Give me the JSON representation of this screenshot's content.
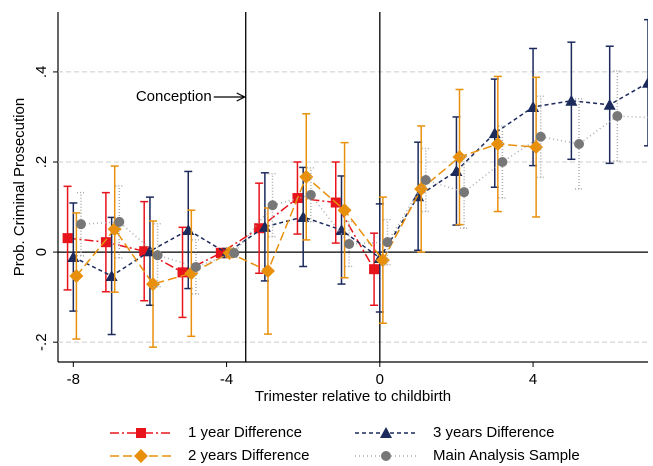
{
  "chart_data": {
    "type": "line",
    "x_label": "Trimester relative to childbirth",
    "y_label": "Prob. Criminal Prosecution",
    "annotation": "Conception",
    "xlim": [
      -8.4,
      7.0
    ],
    "ylim": [
      -0.244,
      0.533
    ],
    "xticks": [
      -8,
      -4,
      0,
      4
    ],
    "yticks": [
      {
        "value": -0.2,
        "label": "-.2"
      },
      0,
      {
        "value": 0.2,
        "label": ".2"
      },
      {
        "value": 0.4,
        "label": ".4"
      }
    ],
    "reference_lines": {
      "x": [
        -3.5,
        0
      ],
      "y": [
        0
      ]
    },
    "grid": true,
    "series": [
      {
        "name": "1 year Difference",
        "color": "#e8141c",
        "marker": "square",
        "dash": "9 3 2 3",
        "x": [
          -8.15,
          -7.15,
          -6.15,
          -5.15,
          -4.15,
          -3.15,
          -2.15,
          -1.15,
          -0.15
        ],
        "values": [
          0.031,
          0.022,
          0.002,
          -0.045,
          -0.002,
          0.053,
          0.12,
          0.11,
          -0.038
        ],
        "errors": [
          0.115,
          0.11,
          0.11,
          0.1,
          0.01,
          0.1,
          0.08,
          0.09,
          0.08
        ]
      },
      {
        "name": "3 years Difference",
        "color": "#1c2a5c",
        "marker": "triangle",
        "dash": "4 3",
        "x": [
          -8,
          -7,
          -6,
          -5,
          -4,
          -3,
          -2,
          -1,
          0,
          1,
          2,
          3,
          4,
          5,
          6,
          7
        ],
        "values": [
          -0.011,
          -0.053,
          0.002,
          0.049,
          -0.002,
          0.056,
          0.078,
          0.049,
          -0.013,
          0.124,
          0.18,
          0.264,
          0.322,
          0.336,
          0.327,
          0.376
        ],
        "errors": [
          0.12,
          0.13,
          0.12,
          0.13,
          0.01,
          0.12,
          0.11,
          0.12,
          0.12,
          0.12,
          0.12,
          0.12,
          0.13,
          0.13,
          0.13,
          0.14
        ]
      },
      {
        "name": "2 years Difference",
        "color": "#e8900c",
        "marker": "diamond",
        "dash": "9 4",
        "x": [
          -7.92,
          -6.92,
          -5.92,
          -4.92,
          -3.92,
          -2.92,
          -1.92,
          -0.92,
          0.08,
          1.08,
          2.08,
          3.08,
          4.08
        ],
        "values": [
          -0.053,
          0.051,
          -0.071,
          -0.047,
          -0.002,
          -0.042,
          0.167,
          0.093,
          -0.018,
          0.14,
          0.211,
          0.24,
          0.233
        ],
        "errors": [
          0.14,
          0.14,
          0.14,
          0.14,
          0.01,
          0.14,
          0.14,
          0.15,
          0.14,
          0.14,
          0.15,
          0.15,
          0.155
        ]
      },
      {
        "name": "Main Analysis Sample",
        "color": "#777777",
        "marker": "circle",
        "dash": "1 3",
        "x": [
          -7.8,
          -6.8,
          -5.8,
          -4.8,
          -3.8,
          -2.8,
          -1.8,
          -0.8,
          0.2,
          1.2,
          2.2,
          3.2,
          4.2,
          5.2,
          6.2,
          7.2
        ],
        "values": [
          0.062,
          0.067,
          -0.007,
          -0.033,
          -0.002,
          0.104,
          0.127,
          0.018,
          0.022,
          0.16,
          0.133,
          0.2,
          0.256,
          0.24,
          0.302,
          0.298
        ],
        "errors": [
          0.07,
          0.08,
          0.07,
          0.06,
          0.01,
          0.07,
          0.06,
          0.05,
          0.05,
          0.07,
          0.08,
          0.08,
          0.09,
          0.1,
          0.1,
          0.1
        ]
      }
    ]
  }
}
